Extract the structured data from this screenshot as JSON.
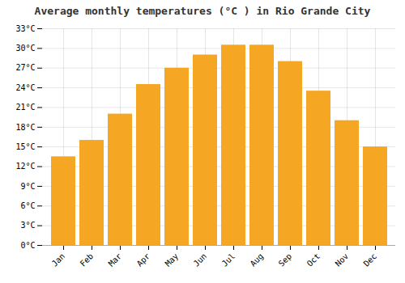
{
  "chart_data": {
    "type": "bar",
    "title": "Average monthly temperatures (°C ) in Rio Grande City",
    "categories": [
      "Jan",
      "Feb",
      "Mar",
      "Apr",
      "May",
      "Jun",
      "Jul",
      "Aug",
      "Sep",
      "Oct",
      "Nov",
      "Dec"
    ],
    "values": [
      13.5,
      16.0,
      20.0,
      24.5,
      27.0,
      29.0,
      30.5,
      30.5,
      28.0,
      23.5,
      19.0,
      15.0
    ],
    "color": "#F5A623",
    "ylim": [
      0,
      33
    ],
    "yticks": [
      {
        "value": 0,
        "label": "0°C"
      },
      {
        "value": 3,
        "label": "3°C"
      },
      {
        "value": 6,
        "label": "6°C"
      },
      {
        "value": 9,
        "label": "9°C"
      },
      {
        "value": 12,
        "label": "12°C"
      },
      {
        "value": 15,
        "label": "15°C"
      },
      {
        "value": 18,
        "label": "18°C"
      },
      {
        "value": 21,
        "label": "21°C"
      },
      {
        "value": 24,
        "label": "24°C"
      },
      {
        "value": 27,
        "label": "27°C"
      },
      {
        "value": 30,
        "label": "30°C"
      },
      {
        "value": 33,
        "label": "33°C"
      }
    ],
    "grid": true
  }
}
